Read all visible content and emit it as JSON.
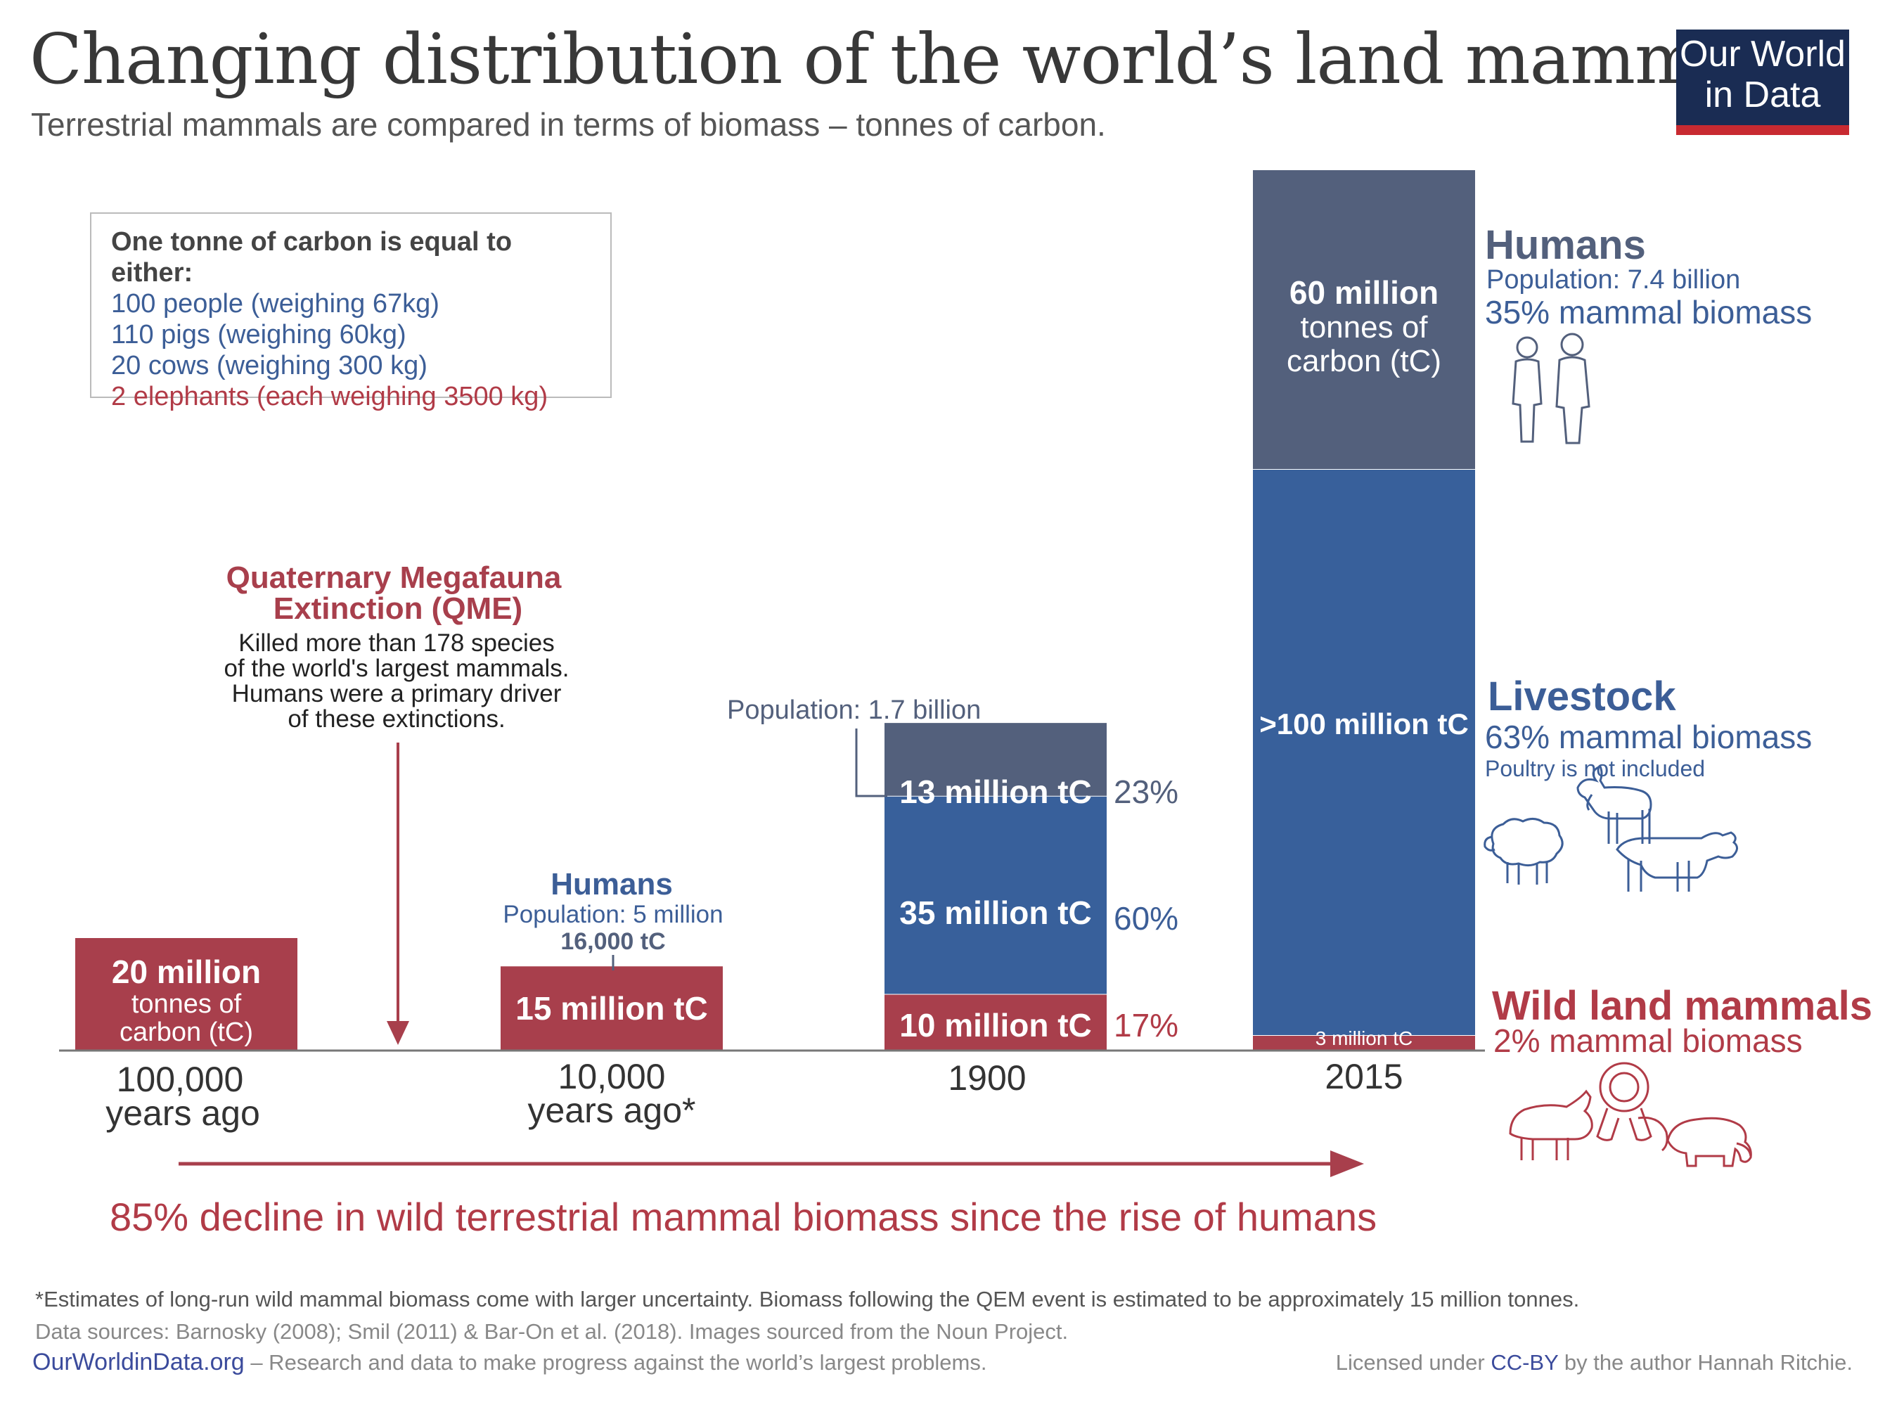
{
  "header": {
    "title": "Changing distribution of the world’s land mammals",
    "subtitle": "Terrestrial mammals are compared in terms of biomass – tonnes of carbon.",
    "logo_line1": "Our World",
    "logo_line2": "in Data"
  },
  "conversion_box": {
    "heading": "One tonne of carbon is equal to either:",
    "lines": [
      "100 people (weighing 67kg)",
      "110 pigs (weighing 60kg)",
      "20 cows (weighing 300 kg)",
      "2 elephants (each weighing 3500 kg)"
    ]
  },
  "annotations": {
    "qme_title_1": "Quaternary Megafauna",
    "qme_title_2": "Extinction (QME)",
    "qme_text": [
      "Killed more than 178 species",
      "of the world's largest mammals.",
      "Humans were a primary driver",
      "of these extinctions."
    ],
    "humans_10k_title": "Humans",
    "humans_10k_pop": "Population: 5 million",
    "humans_10k_value": "16,000 tC",
    "pop_1900": "Population: 1.7 billion",
    "decline": "85% decline in wild terrestrial mammal biomass since the rise of humans"
  },
  "legend": {
    "humans_title": "Humans",
    "humans_pop": "Population: 7.4 billion",
    "humans_share": "35% mammal biomass",
    "livestock_title": "Livestock",
    "livestock_share": "63% mammal biomass",
    "livestock_note": "Poultry is not included",
    "wild_title": "Wild land mammals",
    "wild_share": "2% mammal biomass"
  },
  "colors": {
    "humans": "#53607c",
    "livestock": "#38609b",
    "wild": "#a83f4c",
    "humans_text": "#3c5e97",
    "wild_text": "#b13b47"
  },
  "chart_data": {
    "type": "bar",
    "stacked": true,
    "unit": "million tonnes of carbon (tC)",
    "categories": [
      "100,000 years ago",
      "10,000 years ago*",
      "1900",
      "2015"
    ],
    "series": [
      {
        "name": "Wild land mammals",
        "values": [
          20,
          15,
          10,
          3
        ]
      },
      {
        "name": "Livestock",
        "values": [
          0,
          0,
          35,
          100
        ]
      },
      {
        "name": "Humans",
        "values": [
          0,
          0.016,
          13,
          60
        ]
      }
    ],
    "data_labels": {
      "c0_wild": [
        "20 million",
        "tonnes of",
        "carbon (tC)"
      ],
      "c1_wild": "15 million tC",
      "c2_humans": "13 million tC",
      "c2_livestock": "35 million tC",
      "c2_wild": "10 million tC",
      "c2_humans_pct": "23%",
      "c2_livestock_pct": "60%",
      "c2_wild_pct": "17%",
      "c3_humans": [
        "60 million",
        "tonnes of",
        "carbon (tC)"
      ],
      "c3_livestock": ">100 million tC",
      "c3_wild": "3 million tC"
    }
  },
  "footer": {
    "note": "*Estimates of long-run wild mammal biomass come with larger uncertainty. Biomass following the QEM event is estimated to be approximately 15 million tonnes.",
    "sources": "Data sources: Barnosky (2008); Smil (2011) & Bar-On et al. (2018). Images sourced from the Noun Project.",
    "site": "OurWorldinData.org",
    "site_tagline": " – Research and data to make progress against the world’s largest problems.",
    "license_pre": "Licensed under ",
    "license_link": "CC-BY",
    "license_post": " by the author Hannah Ritchie."
  }
}
